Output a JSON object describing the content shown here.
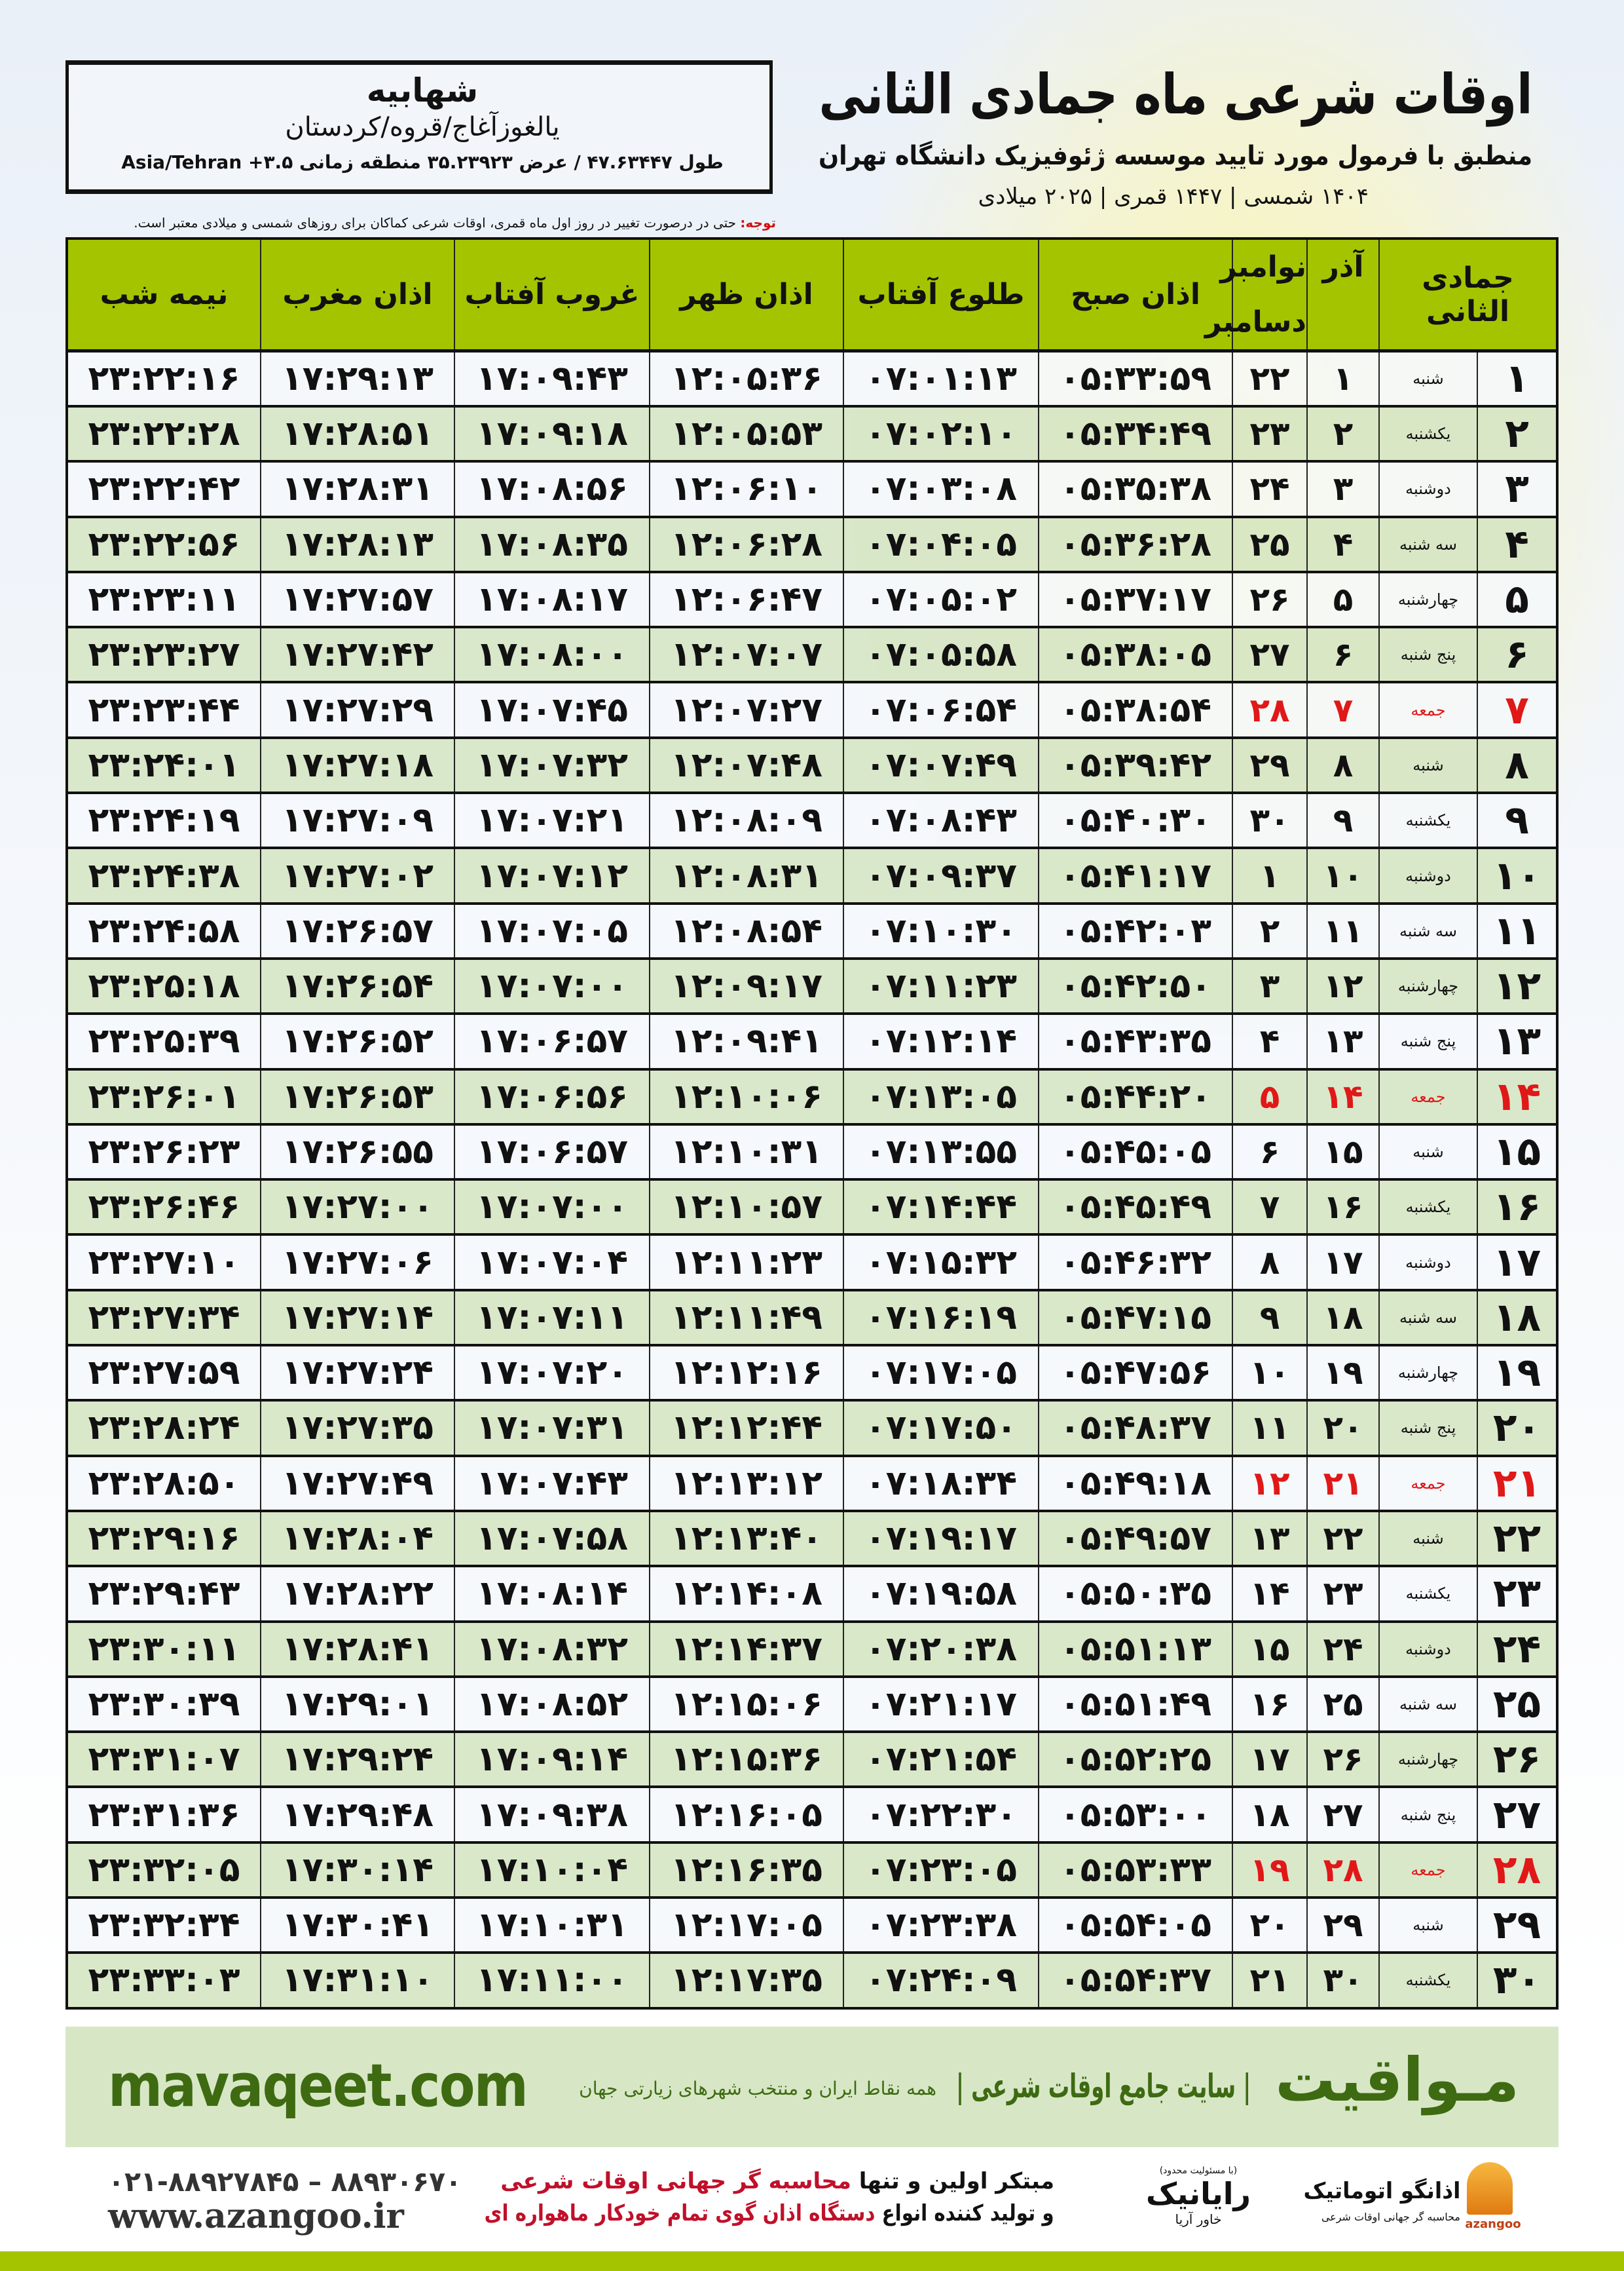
{
  "location": {
    "city": "شهابیه",
    "province": "یالغوزآغاج/قروه/کردستان",
    "coords": "طول ۴۷.۶۳۴۴۷ / عرض ۳۵.۲۳۹۲۳ منطقه زمانی ۳.۵+ Asia/Tehran"
  },
  "header": {
    "title": "اوقات شرعی ماه جمادی الثانی",
    "subtitle": "منطبق با فرمول مورد تایید موسسه ژئوفیزیک دانشگاه تهران",
    "dateline": "۱۴۰۴ شمسی | ۱۴۴۷ قمری | ۲۰۲۵ میلادی"
  },
  "note": {
    "label": "توجه:",
    "text": " حتی در درصورت تغییر در روز اول ماه قمری، اوقات شرعی کماکان برای روزهای شمسی و میلادی معتبر است."
  },
  "table": {
    "headers": {
      "hijri": "جمادی الثانی",
      "azar": "آذر",
      "greg_top": "نوامبر",
      "greg_bottom": "دسامبر",
      "fajr": "اذان صبح",
      "sunrise": "طلوع آفتاب",
      "dhuhr": "اذان ظهر",
      "sunset": "غروب آفتاب",
      "maghrib": "اذان مغرب",
      "midnight": "نیمه شب"
    },
    "friday_color": "#e01818",
    "header_color": "#a5c400",
    "rows": [
      {
        "hijri": "۱",
        "weekday": "شنبه",
        "azar": "۱",
        "greg": "۲۲",
        "fajr": "۰۵:۳۳:۵۹",
        "sunrise": "۰۷:۰۱:۱۳",
        "dhuhr": "۱۲:۰۵:۳۶",
        "sunset": "۱۷:۰۹:۴۳",
        "maghrib": "۱۷:۲۹:۱۳",
        "midnight": "۲۳:۲۲:۱۶",
        "friday": false
      },
      {
        "hijri": "۲",
        "weekday": "یکشنبه",
        "azar": "۲",
        "greg": "۲۳",
        "fajr": "۰۵:۳۴:۴۹",
        "sunrise": "۰۷:۰۲:۱۰",
        "dhuhr": "۱۲:۰۵:۵۳",
        "sunset": "۱۷:۰۹:۱۸",
        "maghrib": "۱۷:۲۸:۵۱",
        "midnight": "۲۳:۲۲:۲۸",
        "friday": false
      },
      {
        "hijri": "۳",
        "weekday": "دوشنبه",
        "azar": "۳",
        "greg": "۲۴",
        "fajr": "۰۵:۳۵:۳۸",
        "sunrise": "۰۷:۰۳:۰۸",
        "dhuhr": "۱۲:۰۶:۱۰",
        "sunset": "۱۷:۰۸:۵۶",
        "maghrib": "۱۷:۲۸:۳۱",
        "midnight": "۲۳:۲۲:۴۲",
        "friday": false
      },
      {
        "hijri": "۴",
        "weekday": "سه شنبه",
        "azar": "۴",
        "greg": "۲۵",
        "fajr": "۰۵:۳۶:۲۸",
        "sunrise": "۰۷:۰۴:۰۵",
        "dhuhr": "۱۲:۰۶:۲۸",
        "sunset": "۱۷:۰۸:۳۵",
        "maghrib": "۱۷:۲۸:۱۳",
        "midnight": "۲۳:۲۲:۵۶",
        "friday": false
      },
      {
        "hijri": "۵",
        "weekday": "چهارشنبه",
        "azar": "۵",
        "greg": "۲۶",
        "fajr": "۰۵:۳۷:۱۷",
        "sunrise": "۰۷:۰۵:۰۲",
        "dhuhr": "۱۲:۰۶:۴۷",
        "sunset": "۱۷:۰۸:۱۷",
        "maghrib": "۱۷:۲۷:۵۷",
        "midnight": "۲۳:۲۳:۱۱",
        "friday": false
      },
      {
        "hijri": "۶",
        "weekday": "پنج شنبه",
        "azar": "۶",
        "greg": "۲۷",
        "fajr": "۰۵:۳۸:۰۵",
        "sunrise": "۰۷:۰۵:۵۸",
        "dhuhr": "۱۲:۰۷:۰۷",
        "sunset": "۱۷:۰۸:۰۰",
        "maghrib": "۱۷:۲۷:۴۲",
        "midnight": "۲۳:۲۳:۲۷",
        "friday": false
      },
      {
        "hijri": "۷",
        "weekday": "جمعه",
        "azar": "۷",
        "greg": "۲۸",
        "fajr": "۰۵:۳۸:۵۴",
        "sunrise": "۰۷:۰۶:۵۴",
        "dhuhr": "۱۲:۰۷:۲۷",
        "sunset": "۱۷:۰۷:۴۵",
        "maghrib": "۱۷:۲۷:۲۹",
        "midnight": "۲۳:۲۳:۴۴",
        "friday": true
      },
      {
        "hijri": "۸",
        "weekday": "شنبه",
        "azar": "۸",
        "greg": "۲۹",
        "fajr": "۰۵:۳۹:۴۲",
        "sunrise": "۰۷:۰۷:۴۹",
        "dhuhr": "۱۲:۰۷:۴۸",
        "sunset": "۱۷:۰۷:۳۲",
        "maghrib": "۱۷:۲۷:۱۸",
        "midnight": "۲۳:۲۴:۰۱",
        "friday": false
      },
      {
        "hijri": "۹",
        "weekday": "یکشنبه",
        "azar": "۹",
        "greg": "۳۰",
        "fajr": "۰۵:۴۰:۳۰",
        "sunrise": "۰۷:۰۸:۴۳",
        "dhuhr": "۱۲:۰۸:۰۹",
        "sunset": "۱۷:۰۷:۲۱",
        "maghrib": "۱۷:۲۷:۰۹",
        "midnight": "۲۳:۲۴:۱۹",
        "friday": false
      },
      {
        "hijri": "۱۰",
        "weekday": "دوشنبه",
        "azar": "۱۰",
        "greg": "۱",
        "fajr": "۰۵:۴۱:۱۷",
        "sunrise": "۰۷:۰۹:۳۷",
        "dhuhr": "۱۲:۰۸:۳۱",
        "sunset": "۱۷:۰۷:۱۲",
        "maghrib": "۱۷:۲۷:۰۲",
        "midnight": "۲۳:۲۴:۳۸",
        "friday": false
      },
      {
        "hijri": "۱۱",
        "weekday": "سه شنبه",
        "azar": "۱۱",
        "greg": "۲",
        "fajr": "۰۵:۴۲:۰۳",
        "sunrise": "۰۷:۱۰:۳۰",
        "dhuhr": "۱۲:۰۸:۵۴",
        "sunset": "۱۷:۰۷:۰۵",
        "maghrib": "۱۷:۲۶:۵۷",
        "midnight": "۲۳:۲۴:۵۸",
        "friday": false
      },
      {
        "hijri": "۱۲",
        "weekday": "چهارشنبه",
        "azar": "۱۲",
        "greg": "۳",
        "fajr": "۰۵:۴۲:۵۰",
        "sunrise": "۰۷:۱۱:۲۳",
        "dhuhr": "۱۲:۰۹:۱۷",
        "sunset": "۱۷:۰۷:۰۰",
        "maghrib": "۱۷:۲۶:۵۴",
        "midnight": "۲۳:۲۵:۱۸",
        "friday": false
      },
      {
        "hijri": "۱۳",
        "weekday": "پنج شنبه",
        "azar": "۱۳",
        "greg": "۴",
        "fajr": "۰۵:۴۳:۳۵",
        "sunrise": "۰۷:۱۲:۱۴",
        "dhuhr": "۱۲:۰۹:۴۱",
        "sunset": "۱۷:۰۶:۵۷",
        "maghrib": "۱۷:۲۶:۵۲",
        "midnight": "۲۳:۲۵:۳۹",
        "friday": false
      },
      {
        "hijri": "۱۴",
        "weekday": "جمعه",
        "azar": "۱۴",
        "greg": "۵",
        "fajr": "۰۵:۴۴:۲۰",
        "sunrise": "۰۷:۱۳:۰۵",
        "dhuhr": "۱۲:۱۰:۰۶",
        "sunset": "۱۷:۰۶:۵۶",
        "maghrib": "۱۷:۲۶:۵۳",
        "midnight": "۲۳:۲۶:۰۱",
        "friday": true
      },
      {
        "hijri": "۱۵",
        "weekday": "شنبه",
        "azar": "۱۵",
        "greg": "۶",
        "fajr": "۰۵:۴۵:۰۵",
        "sunrise": "۰۷:۱۳:۵۵",
        "dhuhr": "۱۲:۱۰:۳۱",
        "sunset": "۱۷:۰۶:۵۷",
        "maghrib": "۱۷:۲۶:۵۵",
        "midnight": "۲۳:۲۶:۲۳",
        "friday": false
      },
      {
        "hijri": "۱۶",
        "weekday": "یکشنبه",
        "azar": "۱۶",
        "greg": "۷",
        "fajr": "۰۵:۴۵:۴۹",
        "sunrise": "۰۷:۱۴:۴۴",
        "dhuhr": "۱۲:۱۰:۵۷",
        "sunset": "۱۷:۰۷:۰۰",
        "maghrib": "۱۷:۲۷:۰۰",
        "midnight": "۲۳:۲۶:۴۶",
        "friday": false
      },
      {
        "hijri": "۱۷",
        "weekday": "دوشنبه",
        "azar": "۱۷",
        "greg": "۸",
        "fajr": "۰۵:۴۶:۳۲",
        "sunrise": "۰۷:۱۵:۳۲",
        "dhuhr": "۱۲:۱۱:۲۳",
        "sunset": "۱۷:۰۷:۰۴",
        "maghrib": "۱۷:۲۷:۰۶",
        "midnight": "۲۳:۲۷:۱۰",
        "friday": false
      },
      {
        "hijri": "۱۸",
        "weekday": "سه شنبه",
        "azar": "۱۸",
        "greg": "۹",
        "fajr": "۰۵:۴۷:۱۵",
        "sunrise": "۰۷:۱۶:۱۹",
        "dhuhr": "۱۲:۱۱:۴۹",
        "sunset": "۱۷:۰۷:۱۱",
        "maghrib": "۱۷:۲۷:۱۴",
        "midnight": "۲۳:۲۷:۳۴",
        "friday": false
      },
      {
        "hijri": "۱۹",
        "weekday": "چهارشنبه",
        "azar": "۱۹",
        "greg": "۱۰",
        "fajr": "۰۵:۴۷:۵۶",
        "sunrise": "۰۷:۱۷:۰۵",
        "dhuhr": "۱۲:۱۲:۱۶",
        "sunset": "۱۷:۰۷:۲۰",
        "maghrib": "۱۷:۲۷:۲۴",
        "midnight": "۲۳:۲۷:۵۹",
        "friday": false
      },
      {
        "hijri": "۲۰",
        "weekday": "پنج شنبه",
        "azar": "۲۰",
        "greg": "۱۱",
        "fajr": "۰۵:۴۸:۳۷",
        "sunrise": "۰۷:۱۷:۵۰",
        "dhuhr": "۱۲:۱۲:۴۴",
        "sunset": "۱۷:۰۷:۳۱",
        "maghrib": "۱۷:۲۷:۳۵",
        "midnight": "۲۳:۲۸:۲۴",
        "friday": false
      },
      {
        "hijri": "۲۱",
        "weekday": "جمعه",
        "azar": "۲۱",
        "greg": "۱۲",
        "fajr": "۰۵:۴۹:۱۸",
        "sunrise": "۰۷:۱۸:۳۴",
        "dhuhr": "۱۲:۱۳:۱۲",
        "sunset": "۱۷:۰۷:۴۳",
        "maghrib": "۱۷:۲۷:۴۹",
        "midnight": "۲۳:۲۸:۵۰",
        "friday": true
      },
      {
        "hijri": "۲۲",
        "weekday": "شنبه",
        "azar": "۲۲",
        "greg": "۱۳",
        "fajr": "۰۵:۴۹:۵۷",
        "sunrise": "۰۷:۱۹:۱۷",
        "dhuhr": "۱۲:۱۳:۴۰",
        "sunset": "۱۷:۰۷:۵۸",
        "maghrib": "۱۷:۲۸:۰۴",
        "midnight": "۲۳:۲۹:۱۶",
        "friday": false
      },
      {
        "hijri": "۲۳",
        "weekday": "یکشنبه",
        "azar": "۲۳",
        "greg": "۱۴",
        "fajr": "۰۵:۵۰:۳۵",
        "sunrise": "۰۷:۱۹:۵۸",
        "dhuhr": "۱۲:۱۴:۰۸",
        "sunset": "۱۷:۰۸:۱۴",
        "maghrib": "۱۷:۲۸:۲۲",
        "midnight": "۲۳:۲۹:۴۳",
        "friday": false
      },
      {
        "hijri": "۲۴",
        "weekday": "دوشنبه",
        "azar": "۲۴",
        "greg": "۱۵",
        "fajr": "۰۵:۵۱:۱۳",
        "sunrise": "۰۷:۲۰:۳۸",
        "dhuhr": "۱۲:۱۴:۳۷",
        "sunset": "۱۷:۰۸:۳۲",
        "maghrib": "۱۷:۲۸:۴۱",
        "midnight": "۲۳:۳۰:۱۱",
        "friday": false
      },
      {
        "hijri": "۲۵",
        "weekday": "سه شنبه",
        "azar": "۲۵",
        "greg": "۱۶",
        "fajr": "۰۵:۵۱:۴۹",
        "sunrise": "۰۷:۲۱:۱۷",
        "dhuhr": "۱۲:۱۵:۰۶",
        "sunset": "۱۷:۰۸:۵۲",
        "maghrib": "۱۷:۲۹:۰۱",
        "midnight": "۲۳:۳۰:۳۹",
        "friday": false
      },
      {
        "hijri": "۲۶",
        "weekday": "چهارشنبه",
        "azar": "۲۶",
        "greg": "۱۷",
        "fajr": "۰۵:۵۲:۲۵",
        "sunrise": "۰۷:۲۱:۵۴",
        "dhuhr": "۱۲:۱۵:۳۶",
        "sunset": "۱۷:۰۹:۱۴",
        "maghrib": "۱۷:۲۹:۲۴",
        "midnight": "۲۳:۳۱:۰۷",
        "friday": false
      },
      {
        "hijri": "۲۷",
        "weekday": "پنج شنبه",
        "azar": "۲۷",
        "greg": "۱۸",
        "fajr": "۰۵:۵۳:۰۰",
        "sunrise": "۰۷:۲۲:۳۰",
        "dhuhr": "۱۲:۱۶:۰۵",
        "sunset": "۱۷:۰۹:۳۸",
        "maghrib": "۱۷:۲۹:۴۸",
        "midnight": "۲۳:۳۱:۳۶",
        "friday": false
      },
      {
        "hijri": "۲۸",
        "weekday": "جمعه",
        "azar": "۲۸",
        "greg": "۱۹",
        "fajr": "۰۵:۵۳:۳۳",
        "sunrise": "۰۷:۲۳:۰۵",
        "dhuhr": "۱۲:۱۶:۳۵",
        "sunset": "۱۷:۱۰:۰۴",
        "maghrib": "۱۷:۳۰:۱۴",
        "midnight": "۲۳:۳۲:۰۵",
        "friday": true
      },
      {
        "hijri": "۲۹",
        "weekday": "شنبه",
        "azar": "۲۹",
        "greg": "۲۰",
        "fajr": "۰۵:۵۴:۰۵",
        "sunrise": "۰۷:۲۳:۳۸",
        "dhuhr": "۱۲:۱۷:۰۵",
        "sunset": "۱۷:۱۰:۳۱",
        "maghrib": "۱۷:۳۰:۴۱",
        "midnight": "۲۳:۳۲:۳۴",
        "friday": false
      },
      {
        "hijri": "۳۰",
        "weekday": "یکشنبه",
        "azar": "۳۰",
        "greg": "۲۱",
        "fajr": "۰۵:۵۴:۳۷",
        "sunrise": "۰۷:۲۴:۰۹",
        "dhuhr": "۱۲:۱۷:۳۵",
        "sunset": "۱۷:۱۱:۰۰",
        "maghrib": "۱۷:۳۱:۱۰",
        "midnight": "۲۳:۳۳:۰۳",
        "friday": false
      }
    ]
  },
  "footer": {
    "logo": "مـواقیت",
    "slogan": "| سایت جامع اوقات شرعی |",
    "slogan_sub": "همه نقاط ایران و منتخب شهرهای زیارتی جهان",
    "site_url": "mavaqeet.com",
    "promo_line1_a": "مبتکر اولین و تنها ",
    "promo_line1_b": "محاسبه گر جهانی اوقات شرعی",
    "promo_line2_a": "و تولید کننده انواع ",
    "promo_line2_b": "دستگاه اذان گوی تمام خودکار ماهواره ای",
    "phone": "۰۲۱-۸۸۹۲۷۸۴۵ – ۸۸۹۳۰۶۷۰",
    "web": "www.azangoo.ir",
    "rayanik_small": "(با مسئولیت محدود)",
    "rayanik_name": "رایانیک",
    "rayanik_sub": "خاور آریا",
    "azangoo_name": "اذانگو اتوماتیک",
    "azangoo_sub": "محاسبه گر جهانی اوقات شرعی",
    "azangoo_latin": "azangoo",
    "brand_green": "#3e6a12",
    "accent_red": "#c0102a"
  }
}
